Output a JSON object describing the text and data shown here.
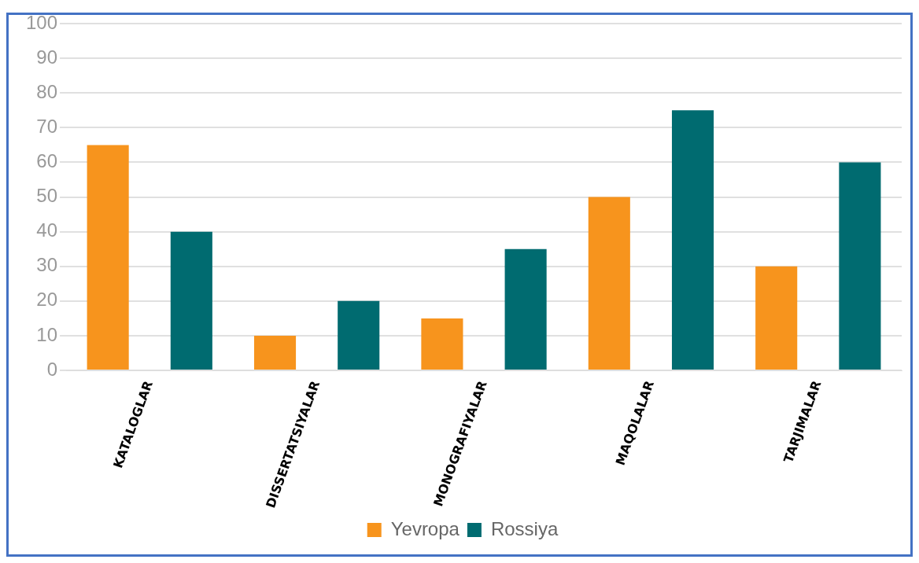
{
  "chart_data": {
    "type": "bar",
    "categories": [
      "KATALOGLAR",
      "DISSERTATSIYALAR",
      "MONOGRAFIYALAR",
      "MAQOLALAR",
      "TARJIMALAR"
    ],
    "series": [
      {
        "name": "Yevropa",
        "color": "#f7941d",
        "values": [
          65,
          10,
          15,
          50,
          30
        ]
      },
      {
        "name": "Rossiya",
        "color": "#006b70",
        "values": [
          40,
          20,
          35,
          75,
          60
        ]
      }
    ],
    "ylim": [
      0,
      100
    ],
    "yticks": [
      0,
      10,
      20,
      30,
      40,
      50,
      60,
      70,
      80,
      90,
      100
    ],
    "grid": "y",
    "legend": "bottom"
  }
}
